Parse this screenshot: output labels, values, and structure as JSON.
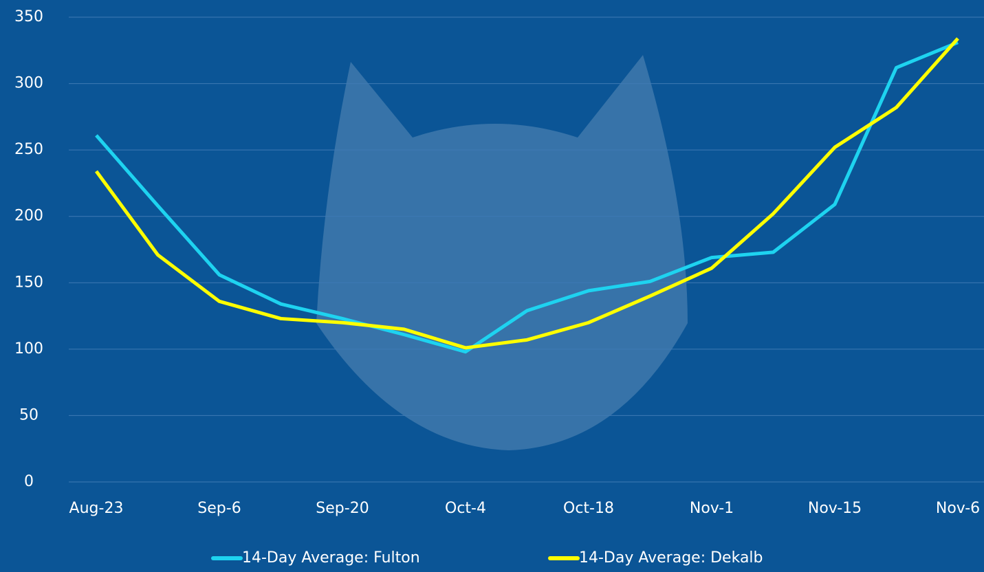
{
  "chart_data": {
    "type": "line",
    "categories": [
      "Aug-23",
      null,
      "Sep-6",
      null,
      "Sep-20",
      null,
      "Oct-4",
      null,
      "Oct-18",
      null,
      "Nov-1",
      null,
      "Nov-15",
      null,
      "Nov-6"
    ],
    "series": [
      {
        "name": "14-Day Average: Fulton",
        "color": "#1ed3f0",
        "values": [
          261,
          208,
          156,
          134,
          123,
          111,
          98,
          129,
          144,
          151,
          169,
          173,
          209,
          312,
          331
        ]
      },
      {
        "name": "14-Day Average: Dekalb",
        "color": "#ffff00",
        "values": [
          234,
          171,
          136,
          123,
          120,
          115,
          101,
          107,
          120,
          140,
          161,
          202,
          252,
          282,
          334
        ]
      }
    ],
    "ylim": [
      0,
      350
    ],
    "yticks": [
      0,
      50,
      100,
      150,
      200,
      250,
      300,
      350
    ],
    "grid": true,
    "legend": "bottom"
  }
}
